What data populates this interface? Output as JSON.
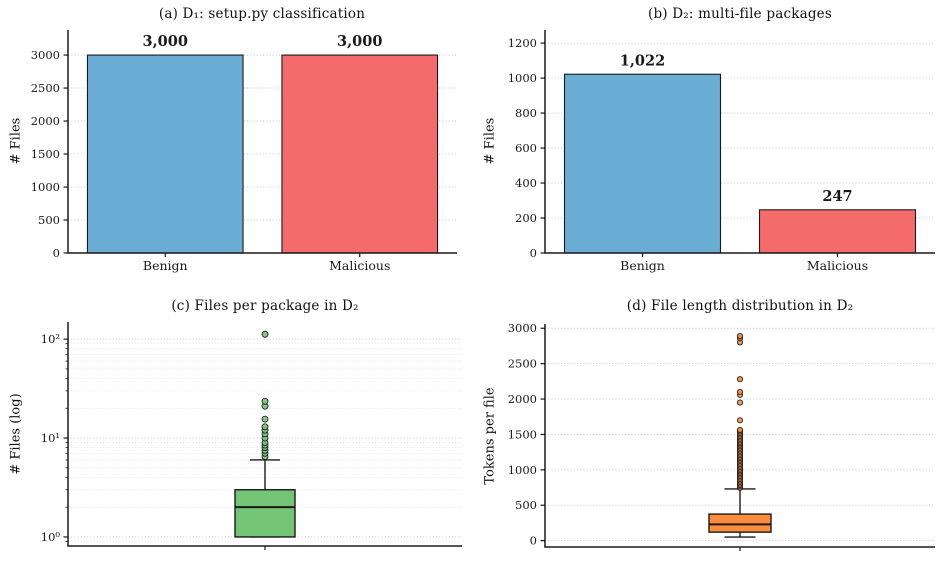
{
  "figure": {
    "background": "#ffffff",
    "text_color": "#1a1a1a",
    "grid_color": "#c6c6c6",
    "minor_grid_color": "#dcdcdc"
  },
  "chart_data": [
    {
      "id": "panel-a",
      "type": "bar",
      "title": "(a) D₁: setup.py classification",
      "ylabel": "# Files",
      "categories": [
        "Benign",
        "Malicious"
      ],
      "values": [
        3000,
        3000
      ],
      "value_labels": [
        "3,000",
        "3,000"
      ],
      "bar_colors": [
        "#6aaed6",
        "#f56a6a"
      ],
      "yticks": [
        0,
        500,
        1000,
        1500,
        2000,
        2500,
        3000
      ],
      "ylim": [
        0,
        3380
      ],
      "grid": "dotted-horizontal",
      "legend": "none"
    },
    {
      "id": "panel-b",
      "type": "bar",
      "title": "(b) D₂: multi-file packages",
      "ylabel": "# Files",
      "categories": [
        "Benign",
        "Malicious"
      ],
      "values": [
        1022,
        247
      ],
      "value_labels": [
        "1,022",
        "247"
      ],
      "bar_colors": [
        "#6aaed6",
        "#f56a6a"
      ],
      "yticks": [
        0,
        200,
        400,
        600,
        800,
        1000,
        1200
      ],
      "ylim": [
        0,
        1275
      ],
      "grid": "dotted-horizontal",
      "legend": "none"
    },
    {
      "id": "panel-c",
      "type": "box",
      "title": "(c) Files per package in D₂",
      "ylabel": "# Files (log)",
      "yscale": "log",
      "ylim": [
        0.81,
        149
      ],
      "yticks": [
        1,
        10,
        100
      ],
      "ytick_labels": [
        "10⁰",
        "10¹",
        "10²"
      ],
      "minor_ticks": [
        0.9,
        2,
        3,
        4,
        5,
        6,
        7,
        8,
        9,
        20,
        30,
        40,
        50,
        60,
        70,
        80,
        90
      ],
      "box": {
        "q1": 1,
        "median": 2,
        "q3": 3,
        "whisker_low": 1,
        "whisker_high": 6,
        "color": "#74c476"
      },
      "outliers": [
        6.5,
        7,
        7.5,
        8,
        8.5,
        9,
        10,
        11,
        12,
        13,
        15.5,
        21,
        23.5,
        112
      ],
      "grid": "dotted-horizontal-both",
      "legend": "none"
    },
    {
      "id": "panel-d",
      "type": "box",
      "title": "(d) File length distribution in D₂",
      "ylabel": "Tokens per file",
      "yscale": "linear",
      "ylim": [
        -90,
        3060
      ],
      "yticks": [
        0,
        500,
        1000,
        1500,
        2000,
        2500,
        3000
      ],
      "box": {
        "q1": 120,
        "median": 230,
        "q3": 375,
        "whisker_low": 50,
        "whisker_high": 730,
        "color": "#fd8d3c"
      },
      "outliers": [
        745,
        766,
        787,
        808,
        829,
        850,
        871,
        892,
        913,
        934,
        955,
        976,
        997,
        1018,
        1039,
        1060,
        1081,
        1102,
        1123,
        1144,
        1165,
        1186,
        1207,
        1228,
        1249,
        1270,
        1291,
        1312,
        1333,
        1354,
        1375,
        1396,
        1417,
        1438,
        1459,
        1480,
        1501,
        1522,
        1543,
        1564,
        1700,
        1950,
        2060,
        2100,
        2280,
        2800,
        2860,
        2890
      ],
      "grid": "dotted-horizontal",
      "legend": "none"
    }
  ]
}
